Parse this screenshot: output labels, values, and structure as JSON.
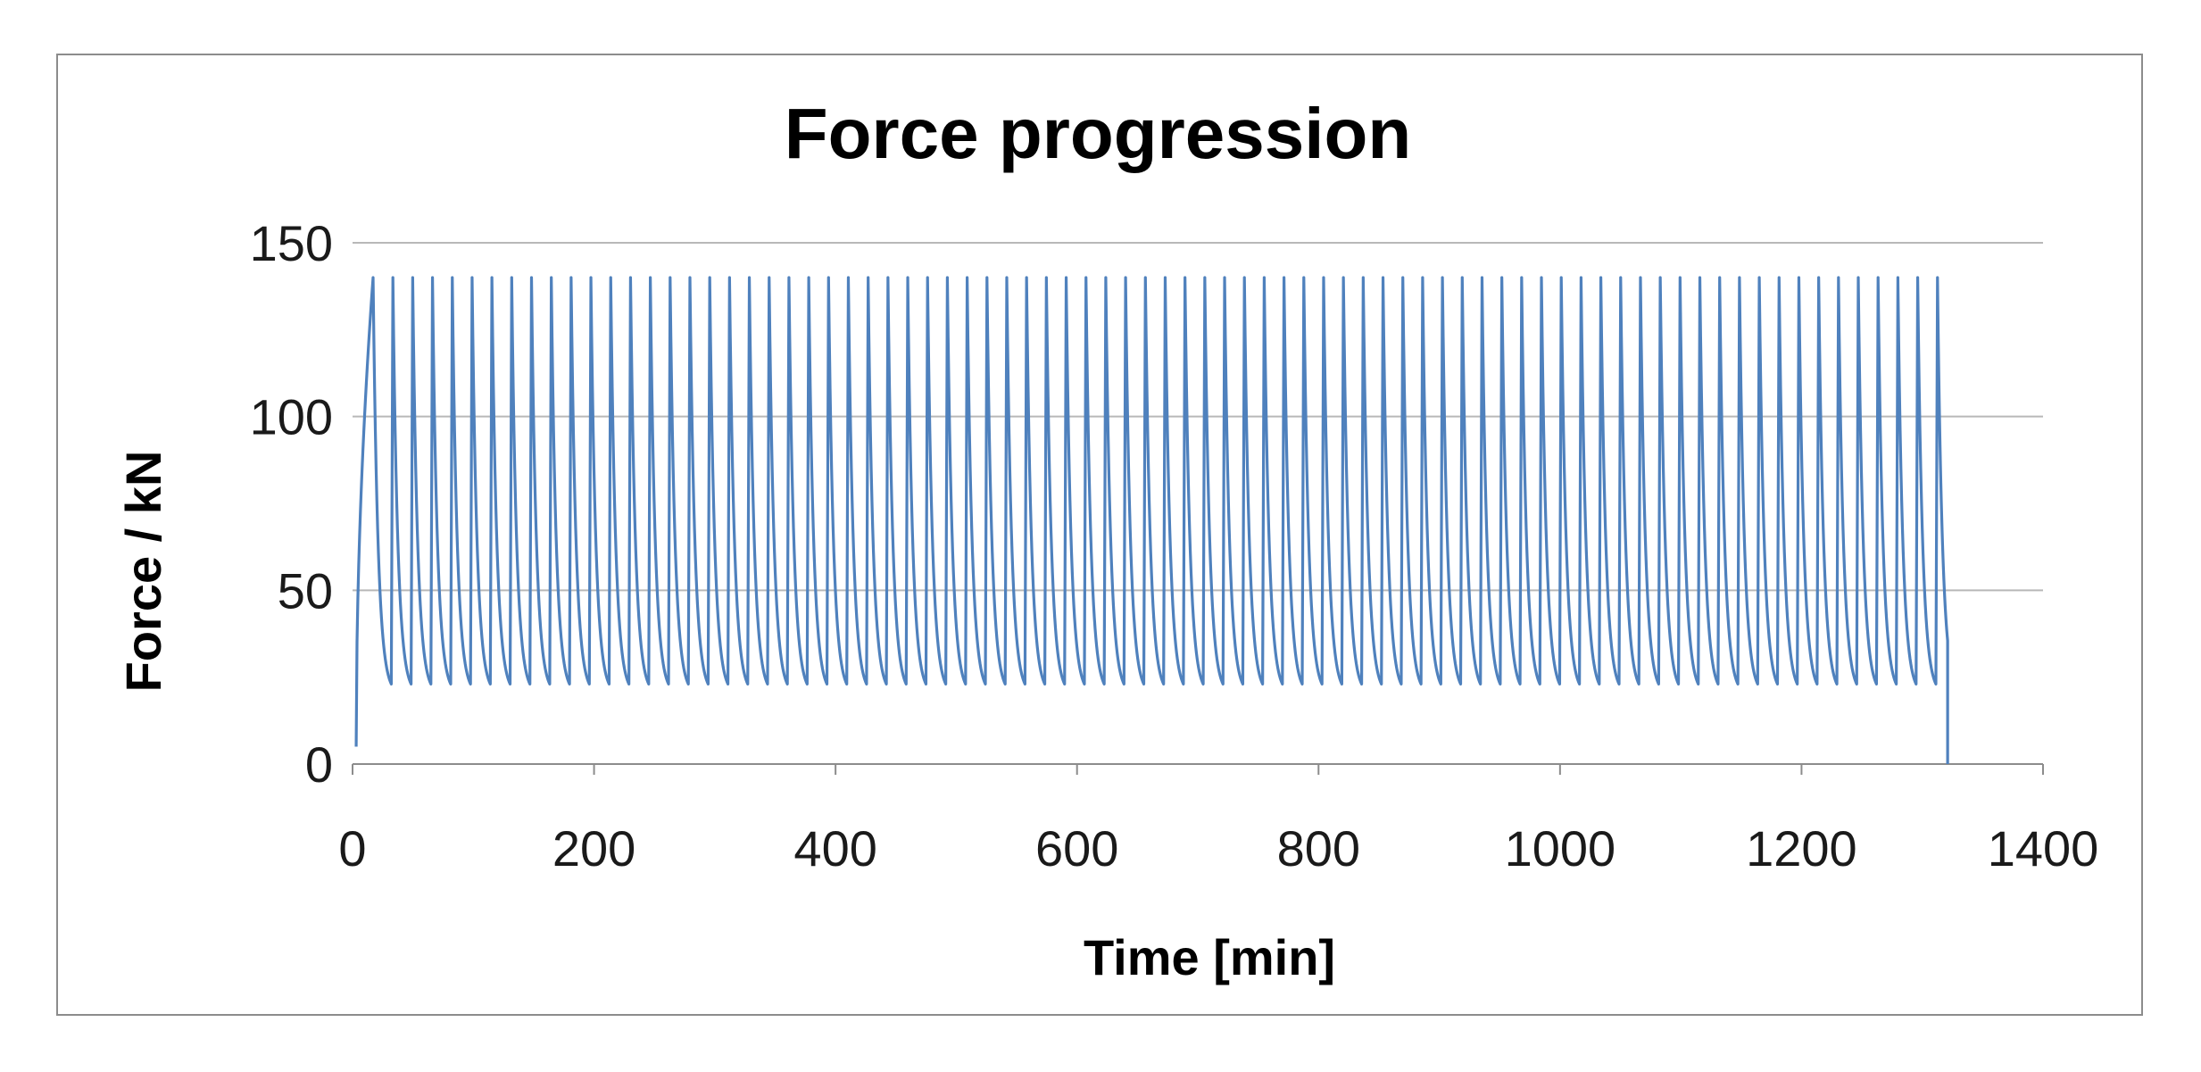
{
  "chart_data": {
    "type": "line",
    "title": "Force progression",
    "xlabel": "Time [min]",
    "ylabel": "Force / kN",
    "xlim": [
      0,
      1400
    ],
    "ylim": [
      0,
      150
    ],
    "x_ticks": [
      "0",
      "200",
      "400",
      "600",
      "800",
      "1000",
      "1200",
      "1400"
    ],
    "y_ticks": [
      "0",
      "50",
      "100",
      "150"
    ],
    "grid": "horizontal",
    "legend": "none",
    "line_color": "#4f81bd",
    "series": [
      {
        "cycle_start_min": 3,
        "first_peak_time_min": 17,
        "peak_interval_min": 16.4,
        "cycle_count": 80,
        "start_force_kN": 5,
        "peak_force_kN": 140,
        "valley_force_kN": 20,
        "end_time_min": 1321,
        "end_force_kN": 0
      }
    ]
  }
}
